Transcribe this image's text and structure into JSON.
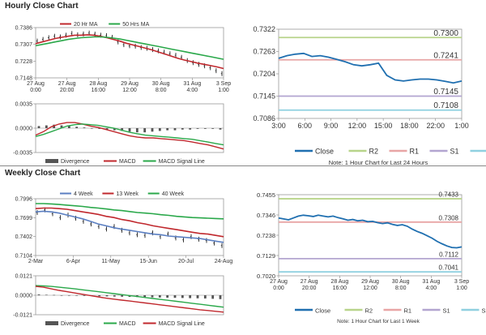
{
  "hourly": {
    "title": "Hourly Close Chart",
    "ma_chart": {
      "type": "line",
      "legend": [
        {
          "name": "20 Hr MA",
          "color": "#c0282d"
        },
        {
          "name": "50 Hrs MA",
          "color": "#2aa84a"
        }
      ],
      "y_ticks": [
        "0.7386",
        "0.7307",
        "0.7228",
        "0.7148"
      ],
      "ylim": [
        0.7148,
        0.7386
      ],
      "x_ticks": [
        "27 Aug\n0:00",
        "27 Aug\n20:00",
        "28 Aug\n16:00",
        "29 Aug\n12:00",
        "30 Aug\n8:00",
        "31 Aug\n4:00",
        "3 Sep\n1:00"
      ],
      "price_bars": [
        0.7322,
        0.733,
        0.7338,
        0.7345,
        0.7342,
        0.735,
        0.7358,
        0.7352,
        0.7356,
        0.736,
        0.7355,
        0.735,
        0.7348,
        0.734,
        0.7318,
        0.7305,
        0.73,
        0.7298,
        0.7292,
        0.7288,
        0.7282,
        0.7276,
        0.727,
        0.7262,
        0.7255,
        0.7245,
        0.723,
        0.722,
        0.7212,
        0.7205,
        0.7196,
        0.7182,
        0.7168
      ],
      "series": [
        {
          "name": "20 Hr MA",
          "values": [
            0.731,
            0.7318,
            0.7326,
            0.7334,
            0.734,
            0.7345,
            0.735,
            0.735,
            0.7352,
            0.735,
            0.7345,
            0.7338,
            0.733,
            0.7322,
            0.7312,
            0.7304,
            0.7296,
            0.7288,
            0.728,
            0.727,
            0.726,
            0.725,
            0.724,
            0.7232,
            0.7225,
            0.7218,
            0.7212,
            0.7206,
            0.72,
            0.7192
          ]
        },
        {
          "name": "50 Hrs MA",
          "values": [
            0.73,
            0.7306,
            0.7312,
            0.7318,
            0.7324,
            0.733,
            0.7334,
            0.7338,
            0.734,
            0.7342,
            0.7342,
            0.734,
            0.7336,
            0.7332,
            0.7326,
            0.732,
            0.7314,
            0.7308,
            0.7302,
            0.7296,
            0.729,
            0.7284,
            0.7278,
            0.7272,
            0.7266,
            0.726,
            0.7254,
            0.7248,
            0.7242,
            0.7236
          ]
        }
      ]
    },
    "macd_chart": {
      "type": "bar",
      "y_ticks": [
        "0.0035",
        "0.0000",
        "-0.0035"
      ],
      "ylim": [
        -0.0035,
        0.0035
      ],
      "divergence": [
        0.0003,
        0.0004,
        0.0005,
        0.0004,
        0.0003,
        0.0002,
        0.0001,
        0.0,
        -0.0001,
        -0.0002,
        -0.0003,
        -0.0004,
        -0.0005,
        -0.0006,
        -0.0006,
        -0.0005,
        -0.0004,
        -0.0003,
        -0.0003,
        -0.0002,
        -0.0002,
        -0.0001,
        -0.0001,
        -0.0001,
        -0.0002
      ],
      "series": [
        {
          "name": "MACD",
          "values": [
            -0.001,
            -0.0005,
            0.0002,
            0.0006,
            0.0008,
            0.0008,
            0.0006,
            0.0003,
            0.0001,
            -0.0002,
            -0.0005,
            -0.0008,
            -0.0011,
            -0.0013,
            -0.0014,
            -0.0014,
            -0.0015,
            -0.0016,
            -0.0017,
            -0.0018,
            -0.002,
            -0.0022,
            -0.0024,
            -0.0027,
            -0.003
          ]
        },
        {
          "name": "MACD Signal Line",
          "values": [
            -0.0012,
            -0.0009,
            -0.0005,
            -0.0001,
            0.0003,
            0.0005,
            0.0006,
            0.0005,
            0.0004,
            0.0002,
            0.0,
            -0.0003,
            -0.0006,
            -0.0008,
            -0.001,
            -0.0011,
            -0.0012,
            -0.0013,
            -0.0014,
            -0.0015,
            -0.0016,
            -0.0018,
            -0.002,
            -0.0022,
            -0.0024
          ]
        }
      ],
      "legend": [
        {
          "name": "Divergence",
          "color": "#555555"
        },
        {
          "name": "MACD",
          "color": "#c0282d"
        },
        {
          "name": "MACD Signal Line",
          "color": "#2aa84a"
        }
      ]
    },
    "pivot_chart": {
      "type": "line",
      "y_ticks": [
        "0.7322",
        "0.7263",
        "0.7204",
        "0.7145",
        "0.7086"
      ],
      "ylim": [
        0.7086,
        0.7322
      ],
      "x_ticks": [
        "3:00",
        "6:00",
        "9:00",
        "12:00",
        "15:00",
        "18:00",
        "22:00",
        "1:00"
      ],
      "levels": [
        {
          "name": "R2",
          "value": 0.73,
          "label": "0.7300",
          "color": "#b8d48a"
        },
        {
          "name": "R1",
          "value": 0.7241,
          "label": "0.7241",
          "color": "#e8a5a5"
        },
        {
          "name": "S1",
          "value": 0.7145,
          "label": "0.7145",
          "color": "#b3a5d0"
        },
        {
          "name": "S2",
          "value": 0.7108,
          "label": "0.7108",
          "color": "#8fd0e0"
        }
      ],
      "close": [
        0.7245,
        0.7252,
        0.7256,
        0.7258,
        0.725,
        0.7252,
        0.7248,
        0.7242,
        0.7236,
        0.7228,
        0.7225,
        0.7228,
        0.7232,
        0.72,
        0.7188,
        0.7185,
        0.7188,
        0.719,
        0.719,
        0.7188,
        0.7184,
        0.718,
        0.7185
      ],
      "legend": [
        "Close",
        "R2",
        "R1",
        "S1",
        "S2"
      ],
      "note": "Note: 1 Hour Chart for Last 24 Hours"
    }
  },
  "weekly": {
    "title": "Weekly Close Chart",
    "ma_chart": {
      "type": "line",
      "legend": [
        {
          "name": "4 Week",
          "color": "#5b7fc2"
        },
        {
          "name": "13 Week",
          "color": "#c0282d"
        },
        {
          "name": "40 Week",
          "color": "#2aa84a"
        }
      ],
      "y_ticks": [
        "0.7996",
        "0.7699",
        "0.7402",
        "0.7104"
      ],
      "ylim": [
        0.7104,
        0.7996
      ],
      "x_ticks": [
        "2-Mar",
        "6-Apr",
        "11-May",
        "15-Jun",
        "20-Jul",
        "24-Aug"
      ],
      "price_bars": [
        0.778,
        0.782,
        0.776,
        0.77,
        0.774,
        0.769,
        0.764,
        0.76,
        0.756,
        0.752,
        0.756,
        0.75,
        0.746,
        0.743,
        0.742,
        0.746,
        0.74,
        0.744,
        0.738,
        0.735,
        0.74,
        0.736,
        0.734,
        0.73,
        0.726
      ],
      "series": [
        {
          "name": "4 Week",
          "values": [
            0.779,
            0.78,
            0.779,
            0.777,
            0.774,
            0.771,
            0.768,
            0.764,
            0.76,
            0.757,
            0.754,
            0.752,
            0.75,
            0.748,
            0.746,
            0.744,
            0.743,
            0.741,
            0.74,
            0.739,
            0.738,
            0.737,
            0.735,
            0.733,
            0.731
          ]
        },
        {
          "name": "13 Week",
          "values": [
            0.784,
            0.785,
            0.785,
            0.784,
            0.783,
            0.781,
            0.779,
            0.777,
            0.775,
            0.772,
            0.77,
            0.767,
            0.765,
            0.762,
            0.76,
            0.757,
            0.755,
            0.753,
            0.751,
            0.749,
            0.747,
            0.745,
            0.744,
            0.742,
            0.74
          ]
        },
        {
          "name": "40 Week",
          "values": [
            0.792,
            0.792,
            0.7915,
            0.7905,
            0.7895,
            0.7885,
            0.7875,
            0.786,
            0.785,
            0.7835,
            0.782,
            0.781,
            0.7795,
            0.778,
            0.777,
            0.776,
            0.7745,
            0.7735,
            0.772,
            0.771,
            0.77,
            0.7695,
            0.769,
            0.7685,
            0.768
          ]
        }
      ]
    },
    "macd_chart": {
      "type": "bar",
      "y_ticks": [
        "0.0121",
        "0.0000",
        "-0.0121"
      ],
      "ylim": [
        -0.0121,
        0.0121
      ],
      "divergence": [
        0.0005,
        0.0003,
        0.0002,
        -0.0001,
        -0.0002,
        -0.0003,
        -0.0004,
        -0.0005,
        -0.0006,
        -0.0007,
        -0.0008,
        -0.0009,
        -0.001,
        -0.0011,
        -0.0012,
        -0.0013,
        -0.0014,
        -0.0015,
        -0.0016,
        -0.0017,
        -0.0018,
        -0.0019,
        -0.002,
        -0.0022,
        -0.0024
      ],
      "series": [
        {
          "name": "MACD",
          "values": [
            0.006,
            0.0058,
            0.0055,
            0.005,
            0.0045,
            0.004,
            0.0034,
            0.0028,
            0.0022,
            0.0016,
            0.001,
            0.0004,
            -0.0002,
            -0.0008,
            -0.0014,
            -0.002,
            -0.0026,
            -0.0032,
            -0.0038,
            -0.0044,
            -0.005,
            -0.0056,
            -0.0062,
            -0.0068,
            -0.0074
          ]
        },
        {
          "name": "MACD Signal Line",
          "values": [
            0.0055,
            0.005,
            0.004,
            0.003,
            0.0022,
            0.0014,
            0.0006,
            -0.0002,
            -0.001,
            -0.0018,
            -0.0024,
            -0.003,
            -0.0036,
            -0.0042,
            -0.0048,
            -0.0054,
            -0.006,
            -0.0066,
            -0.0072,
            -0.0078,
            -0.0084,
            -0.009,
            -0.0095,
            -0.01,
            -0.0105
          ]
        }
      ],
      "legend": [
        {
          "name": "Divergence",
          "color": "#555555"
        },
        {
          "name": "MACD",
          "color": "#2aa84a"
        },
        {
          "name": "MACD Signal Line",
          "color": "#c0282d"
        }
      ]
    },
    "pivot_chart": {
      "type": "line",
      "y_ticks": [
        "0.7455",
        "0.7346",
        "0.7238",
        "0.7129",
        "0.7020"
      ],
      "ylim": [
        0.702,
        0.7455
      ],
      "x_ticks": [
        "27 Aug\n0:00",
        "27 Aug\n20:00",
        "28 Aug\n16:00",
        "29 Aug\n12:00",
        "30 Aug\n8:00",
        "31 Aug\n4:00",
        "3 Sep\n1:00"
      ],
      "levels": [
        {
          "name": "R2",
          "value": 0.7433,
          "label": "0.7433",
          "color": "#b8d48a"
        },
        {
          "name": "R1",
          "value": 0.7308,
          "label": "0.7308",
          "color": "#e8a5a5"
        },
        {
          "name": "S1",
          "value": 0.7112,
          "label": "0.7112",
          "color": "#b3a5d0"
        },
        {
          "name": "S2",
          "value": 0.7041,
          "label": "0.7041",
          "color": "#8fd0e0"
        }
      ],
      "close": [
        0.733,
        0.7325,
        0.732,
        0.733,
        0.734,
        0.7345,
        0.7342,
        0.7338,
        0.7345,
        0.734,
        0.7336,
        0.734,
        0.7332,
        0.7326,
        0.7318,
        0.7322,
        0.7315,
        0.7318,
        0.731,
        0.7312,
        0.7305,
        0.73,
        0.7304,
        0.7296,
        0.729,
        0.7294,
        0.7286,
        0.727,
        0.7258,
        0.7248,
        0.7235,
        0.7222,
        0.7205,
        0.7192,
        0.718,
        0.7172,
        0.717,
        0.7175
      ],
      "legend": [
        "Close",
        "R2",
        "R1",
        "S1",
        "S2"
      ],
      "note": "Note: 1 Hour Chart for Last 1 Week"
    }
  },
  "chart_data": [
    {
      "type": "line",
      "title": "Hourly Close Chart",
      "series": [
        "20 Hr MA",
        "50 Hrs MA"
      ],
      "ylim": [
        0.7148,
        0.7386
      ]
    },
    {
      "type": "bar",
      "title": "Hourly Close Chart",
      "series": [
        "Divergence",
        "MACD",
        "MACD Signal Line"
      ],
      "ylim": [
        -0.0035,
        0.0035
      ]
    },
    {
      "type": "line",
      "title": "Hourly Close Chart",
      "series": [
        "Close",
        "R2",
        "R1",
        "S1",
        "S2"
      ],
      "ylim": [
        0.7086,
        0.7322
      ]
    },
    {
      "type": "line",
      "title": "Weekly Close Chart",
      "series": [
        "4 Week",
        "13 Week",
        "40 Week"
      ],
      "ylim": [
        0.7104,
        0.7996
      ]
    },
    {
      "type": "bar",
      "title": "Weekly Close Chart",
      "series": [
        "Divergence",
        "MACD",
        "MACD Signal Line"
      ],
      "ylim": [
        -0.0121,
        0.0121
      ]
    },
    {
      "type": "line",
      "title": "Weekly Close Chart",
      "series": [
        "Close",
        "R2",
        "R1",
        "S1",
        "S2"
      ],
      "ylim": [
        0.702,
        0.7455
      ]
    }
  ],
  "colors": {
    "close_line": "#1f6fb0",
    "price_bar": "#222222",
    "zero_line": "#888888"
  }
}
